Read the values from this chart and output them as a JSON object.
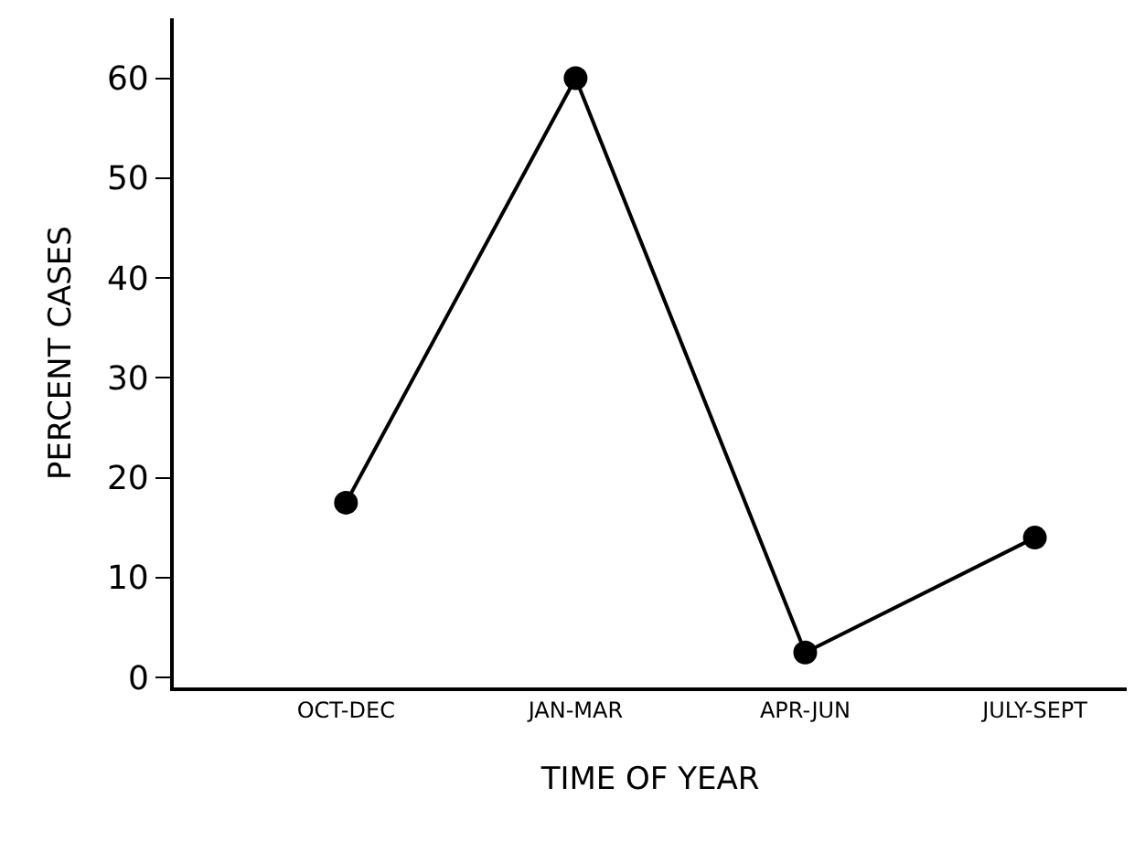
{
  "chart_data": {
    "type": "line",
    "xlabel": "TIME OF YEAR",
    "ylabel": "PERCENT CASES",
    "categories": [
      "OCT-DEC",
      "JAN-MAR",
      "APR-JUN",
      "JULY-SEPT"
    ],
    "series": [
      {
        "color": "#000000",
        "values": [
          17.5,
          60,
          2.5,
          14
        ]
      }
    ],
    "ylim": [
      -1,
      66
    ],
    "yticks": [
      0,
      10,
      20,
      30,
      40,
      50,
      60
    ],
    "marker": "circle",
    "line_style": "solid"
  }
}
